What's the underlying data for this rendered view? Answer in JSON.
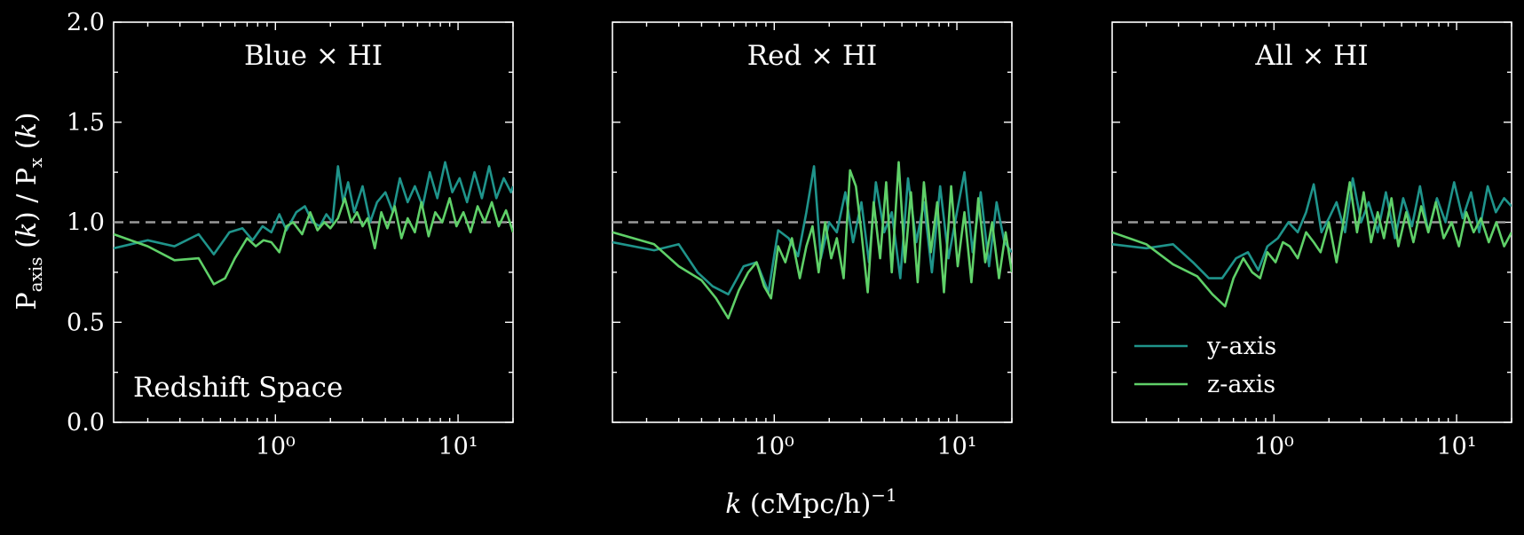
{
  "chart_data": {
    "type": "line",
    "shared_xlabel": "k (cMpc/h)⁻¹",
    "shared_ylabel": "P_axis (k) / P_x (k)",
    "xscale": "log",
    "xlim": [
      0.13,
      20
    ],
    "ylim": [
      0.0,
      2.0
    ],
    "yticks": [
      0.0,
      0.5,
      1.0,
      1.5,
      2.0
    ],
    "ytick_labels": [
      "0.0",
      "0.5",
      "1.0",
      "1.5",
      "2.0"
    ],
    "xticks": [
      1,
      10
    ],
    "xtick_labels": [
      "10⁰",
      "10¹"
    ],
    "reference_line": {
      "y": 1.0,
      "style": "dashed",
      "color": "#9a9a9a"
    },
    "annotation": "Redshift Space",
    "legend": {
      "placement": "lower-left",
      "panel": 2
    },
    "series_colors": {
      "y-axis": "#1f948b",
      "z-axis": "#5fd068"
    },
    "panels": [
      {
        "title": "Blue × HI",
        "series": [
          {
            "name": "y-axis",
            "color": "#1f948b",
            "x": [
              0.13,
              0.2,
              0.28,
              0.38,
              0.46,
              0.56,
              0.66,
              0.75,
              0.85,
              0.95,
              1.05,
              1.15,
              1.3,
              1.45,
              1.6,
              1.75,
              1.9,
              2.05,
              2.2,
              2.35,
              2.5,
              2.7,
              3.0,
              3.3,
              3.6,
              4.0,
              4.4,
              4.8,
              5.3,
              5.8,
              6.4,
              7.0,
              7.7,
              8.5,
              9.3,
              10.2,
              11.2,
              12.3,
              13.5,
              14.8,
              16.2,
              17.8,
              19.5,
              20
            ],
            "y": [
              0.87,
              0.91,
              0.88,
              0.94,
              0.84,
              0.95,
              0.97,
              0.91,
              0.98,
              0.95,
              1.04,
              0.96,
              1.05,
              1.08,
              1.0,
              0.98,
              1.04,
              1.0,
              1.28,
              1.1,
              1.2,
              1.05,
              1.18,
              1.0,
              1.1,
              1.15,
              1.05,
              1.22,
              1.1,
              1.18,
              1.08,
              1.25,
              1.12,
              1.3,
              1.15,
              1.22,
              1.1,
              1.25,
              1.12,
              1.28,
              1.12,
              1.22,
              1.15,
              1.18
            ]
          },
          {
            "name": "z-axis",
            "color": "#5fd068",
            "x": [
              0.13,
              0.2,
              0.28,
              0.38,
              0.46,
              0.53,
              0.6,
              0.7,
              0.78,
              0.86,
              0.95,
              1.05,
              1.15,
              1.25,
              1.4,
              1.55,
              1.7,
              1.85,
              2.0,
              2.2,
              2.4,
              2.6,
              2.8,
              3.0,
              3.2,
              3.5,
              3.8,
              4.1,
              4.5,
              4.9,
              5.3,
              5.8,
              6.3,
              6.9,
              7.5,
              8.2,
              9.0,
              9.8,
              10.7,
              11.7,
              12.8,
              14.0,
              15.3,
              16.7,
              18.3,
              20
            ],
            "y": [
              0.94,
              0.88,
              0.81,
              0.82,
              0.69,
              0.72,
              0.82,
              0.92,
              0.88,
              0.91,
              0.9,
              0.85,
              0.98,
              1.0,
              0.94,
              1.05,
              0.96,
              1.0,
              0.97,
              1.02,
              1.12,
              1.0,
              1.05,
              0.98,
              1.02,
              0.87,
              1.05,
              0.97,
              1.08,
              0.92,
              1.02,
              0.95,
              1.1,
              0.93,
              1.05,
              1.0,
              1.12,
              0.98,
              1.05,
              0.95,
              1.08,
              1.0,
              1.1,
              0.98,
              1.06,
              0.95
            ]
          }
        ]
      },
      {
        "title": "Red × HI",
        "series": [
          {
            "name": "y-axis",
            "color": "#1f948b",
            "x": [
              0.13,
              0.22,
              0.3,
              0.38,
              0.46,
              0.56,
              0.68,
              0.8,
              0.93,
              1.05,
              1.2,
              1.35,
              1.5,
              1.65,
              1.8,
              2.0,
              2.2,
              2.45,
              2.7,
              3.0,
              3.3,
              3.6,
              4.0,
              4.4,
              4.9,
              5.4,
              6.0,
              6.6,
              7.3,
              8.1,
              9.0,
              10.0,
              11.0,
              12.2,
              13.5,
              15.0,
              16.5,
              18.2,
              20
            ],
            "y": [
              0.9,
              0.86,
              0.89,
              0.75,
              0.68,
              0.64,
              0.78,
              0.8,
              0.65,
              0.96,
              0.92,
              0.83,
              1.05,
              1.28,
              0.82,
              1.0,
              0.95,
              1.15,
              0.9,
              1.1,
              0.8,
              1.2,
              0.95,
              1.05,
              0.72,
              1.22,
              0.9,
              1.1,
              0.75,
              1.18,
              0.82,
              1.05,
              1.25,
              0.85,
              1.15,
              0.78,
              1.1,
              0.9,
              0.85
            ]
          },
          {
            "name": "z-axis",
            "color": "#5fd068",
            "x": [
              0.13,
              0.22,
              0.3,
              0.4,
              0.48,
              0.56,
              0.64,
              0.72,
              0.8,
              0.88,
              0.96,
              1.05,
              1.15,
              1.25,
              1.38,
              1.5,
              1.62,
              1.75,
              1.9,
              2.05,
              2.2,
              2.4,
              2.6,
              2.8,
              3.0,
              3.25,
              3.5,
              3.8,
              4.1,
              4.4,
              4.8,
              5.2,
              5.6,
              6.1,
              6.6,
              7.2,
              7.8,
              8.5,
              9.3,
              10.1,
              11.0,
              12.0,
              13.1,
              14.3,
              15.6,
              17.0,
              18.5,
              20
            ],
            "y": [
              0.95,
              0.89,
              0.78,
              0.71,
              0.62,
              0.52,
              0.66,
              0.75,
              0.8,
              0.68,
              0.62,
              0.88,
              0.8,
              0.92,
              0.72,
              0.88,
              0.98,
              0.75,
              1.0,
              0.82,
              0.92,
              0.72,
              1.26,
              1.18,
              0.95,
              0.65,
              1.1,
              0.82,
              1.2,
              0.75,
              1.3,
              0.8,
              1.15,
              0.7,
              1.2,
              0.85,
              1.1,
              0.65,
              1.18,
              0.78,
              1.05,
              0.7,
              1.12,
              0.8,
              1.0,
              0.72,
              0.95,
              0.75
            ]
          }
        ]
      },
      {
        "title": "All × HI",
        "series": [
          {
            "name": "y-axis",
            "color": "#1f948b",
            "x": [
              0.13,
              0.2,
              0.28,
              0.36,
              0.44,
              0.52,
              0.62,
              0.72,
              0.82,
              0.92,
              1.05,
              1.2,
              1.35,
              1.5,
              1.65,
              1.82,
              2.0,
              2.2,
              2.45,
              2.7,
              3.0,
              3.3,
              3.7,
              4.1,
              4.6,
              5.1,
              5.7,
              6.3,
              7.0,
              7.8,
              8.7,
              9.7,
              10.8,
              12.0,
              13.3,
              14.8,
              16.4,
              18.2,
              20
            ],
            "y": [
              0.89,
              0.87,
              0.89,
              0.8,
              0.72,
              0.72,
              0.82,
              0.85,
              0.76,
              0.88,
              0.92,
              1.0,
              0.95,
              1.05,
              1.19,
              0.95,
              1.02,
              1.1,
              0.95,
              1.22,
              1.0,
              1.1,
              0.95,
              1.15,
              0.92,
              1.12,
              0.98,
              1.18,
              0.95,
              1.12,
              1.0,
              1.2,
              1.02,
              1.15,
              0.95,
              1.18,
              1.05,
              1.12,
              1.08
            ]
          },
          {
            "name": "z-axis",
            "color": "#5fd068",
            "x": [
              0.13,
              0.2,
              0.28,
              0.38,
              0.46,
              0.54,
              0.6,
              0.68,
              0.76,
              0.84,
              0.92,
              1.02,
              1.12,
              1.22,
              1.35,
              1.5,
              1.65,
              1.8,
              2.0,
              2.2,
              2.4,
              2.6,
              2.85,
              3.1,
              3.4,
              3.7,
              4.0,
              4.4,
              4.8,
              5.3,
              5.8,
              6.4,
              7.0,
              7.7,
              8.5,
              9.4,
              10.3,
              11.3,
              12.4,
              13.6,
              15.0,
              16.5,
              18.2,
              20
            ],
            "y": [
              0.95,
              0.89,
              0.79,
              0.73,
              0.64,
              0.58,
              0.72,
              0.82,
              0.75,
              0.72,
              0.85,
              0.8,
              0.9,
              0.88,
              0.82,
              0.95,
              0.9,
              0.85,
              1.0,
              0.8,
              1.0,
              1.2,
              0.95,
              1.15,
              0.9,
              1.05,
              0.92,
              1.12,
              0.88,
              1.05,
              0.9,
              1.08,
              0.95,
              1.1,
              0.92,
              1.0,
              0.88,
              1.05,
              0.95,
              1.02,
              0.9,
              1.0,
              0.88,
              0.95
            ]
          }
        ]
      }
    ],
    "grid": false
  }
}
